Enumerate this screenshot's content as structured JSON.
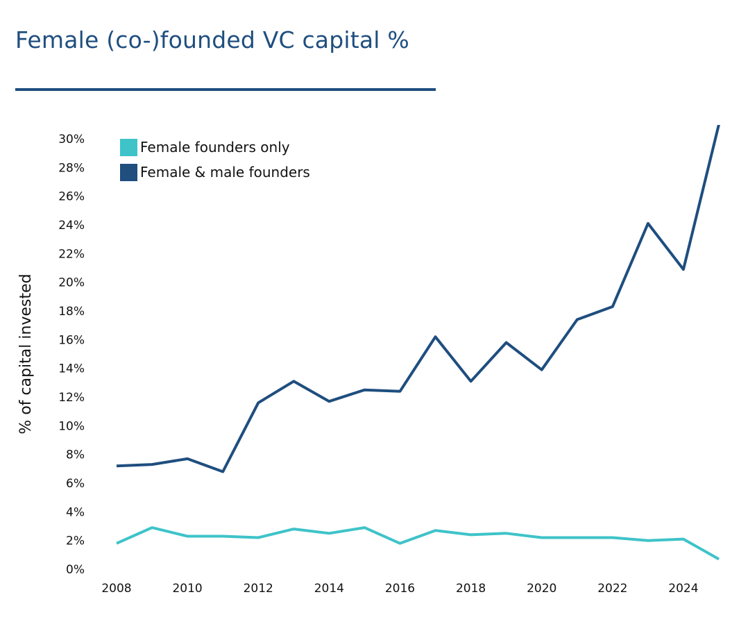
{
  "chart_data": {
    "type": "line",
    "title": "Female (co-)founded VC capital %",
    "ylabel": "% of capital invested",
    "xlabel": "",
    "x": [
      2008,
      2009,
      2010,
      2011,
      2012,
      2013,
      2014,
      2015,
      2016,
      2017,
      2018,
      2019,
      2020,
      2021,
      2022,
      2023,
      2024,
      2025
    ],
    "x_tick_labels": [
      "2008",
      "2010",
      "2012",
      "2014",
      "2016",
      "2018",
      "2020",
      "2022",
      "2024"
    ],
    "y_tick_labels": [
      "0%",
      "2%",
      "4%",
      "6%",
      "8%",
      "10%",
      "12%",
      "14%",
      "16%",
      "18%",
      "20%",
      "22%",
      "24%",
      "26%",
      "28%",
      "30%"
    ],
    "ylim": [
      0,
      30
    ],
    "grid": false,
    "legend_position": "top-left",
    "series": [
      {
        "name": "Female founders only",
        "color": "#3ec3c9",
        "values": [
          1.8,
          2.9,
          2.3,
          2.3,
          2.2,
          2.8,
          2.5,
          2.9,
          1.8,
          2.7,
          2.4,
          2.5,
          2.2,
          2.2,
          2.2,
          2.0,
          2.1,
          0.7
        ]
      },
      {
        "name": "Female & male founders",
        "color": "#1f4e7f",
        "values": [
          7.2,
          7.3,
          7.7,
          6.8,
          11.6,
          13.1,
          11.7,
          12.5,
          12.4,
          16.2,
          13.1,
          15.8,
          13.9,
          17.4,
          18.3,
          24.1,
          20.9,
          31.0
        ]
      }
    ]
  }
}
